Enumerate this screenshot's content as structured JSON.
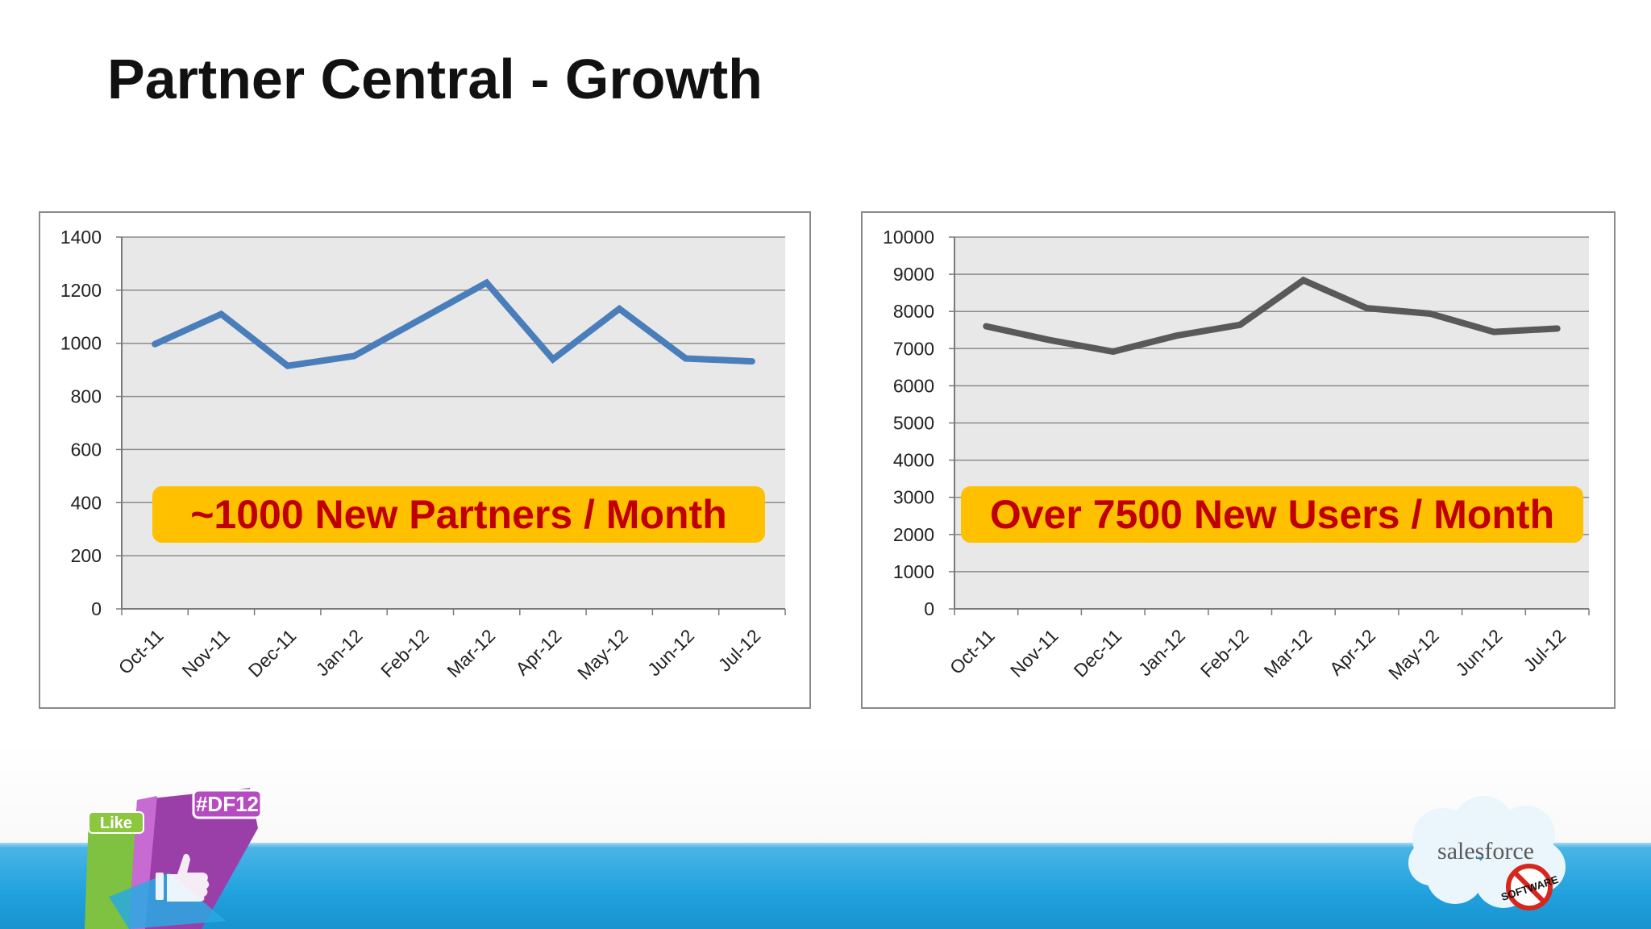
{
  "slide": {
    "title": "Partner Central - Growth"
  },
  "callouts": {
    "left": "~1000 New Partners / Month",
    "right": "Over 7500 New Users / Month"
  },
  "logos": {
    "event_badge": "#DF12",
    "like_label": "Like",
    "brand": "salesforce",
    "stamp": "SOFTWARE",
    "colors": {
      "footer": "#1fa1dd",
      "cloud": "#e8f4fb"
    }
  },
  "chart_data": [
    {
      "type": "line",
      "categories": [
        "Oct-11",
        "Nov-11",
        "Dec-11",
        "Jan-12",
        "Feb-12",
        "Mar-12",
        "Apr-12",
        "May-12",
        "Jun-12",
        "Jul-12"
      ],
      "series": [
        {
          "color": "#4a7ebb",
          "values": [
            997,
            1110,
            915,
            952,
            1090,
            1228,
            940,
            1130,
            943,
            932
          ]
        }
      ],
      "ylim": [
        0,
        1400
      ],
      "yticks": [
        "0",
        "200",
        "400",
        "600",
        "800",
        "1000",
        "1200",
        "1400"
      ],
      "grid": true,
      "plot_bg": "#e8e8e8"
    },
    {
      "type": "line",
      "categories": [
        "Oct-11",
        "Nov-11",
        "Dec-11",
        "Jan-12",
        "Feb-12",
        "Mar-12",
        "Apr-12",
        "May-12",
        "Jun-12",
        "Jul-12"
      ],
      "series": [
        {
          "color": "#595959",
          "values": [
            7600,
            7230,
            6920,
            7350,
            7640,
            8840,
            8090,
            7940,
            7450,
            7540
          ]
        }
      ],
      "ylim": [
        0,
        10000
      ],
      "yticks": [
        "0",
        "1000",
        "2000",
        "3000",
        "4000",
        "5000",
        "6000",
        "7000",
        "8000",
        "9000",
        "10000"
      ],
      "grid": true,
      "plot_bg": "#e8e8e8"
    }
  ]
}
